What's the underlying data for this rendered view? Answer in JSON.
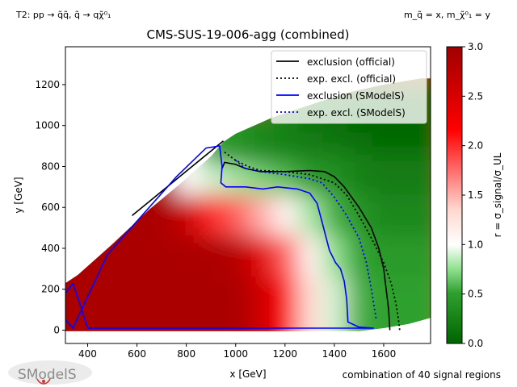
{
  "header": {
    "process": "T2: pp → q̃q̃, q̃ → qχ̃⁰₁",
    "mass_relation": "m_q̃ = x, m_χ̃⁰₁ = y",
    "footer_note": "combination of 40 signal regions",
    "logo_text": "SModelS"
  },
  "colors": {
    "official_line": "#000000",
    "smodels_line": "#0000ff",
    "colormap": [
      "#006400",
      "#ffffff",
      "#ff0000",
      "#a00000"
    ]
  },
  "chart_data": {
    "type": "heatmap",
    "title": "CMS-SUS-19-006-agg (combined)",
    "xlabel": "x [GeV]",
    "ylabel": "y [GeV]",
    "colorbar_label": "r = σ_signal/σ_UL",
    "xlim": [
      310,
      1790
    ],
    "ylim": [
      -65,
      1385
    ],
    "clim": [
      0,
      3
    ],
    "x_ticks": [
      400,
      600,
      800,
      1000,
      1200,
      1400,
      1600
    ],
    "y_ticks": [
      0,
      200,
      400,
      600,
      800,
      1000,
      1200
    ],
    "colorbar_ticks": [
      0.0,
      0.5,
      1.0,
      1.5,
      2.0,
      2.5,
      3.0
    ],
    "legend_position": "upper right",
    "grid": [
      [
        310,
        0,
        2.9
      ],
      [
        500,
        0,
        2.9
      ],
      [
        700,
        0,
        2.9
      ],
      [
        900,
        0,
        2.9
      ],
      [
        1100,
        0,
        2.9
      ],
      [
        1200,
        0,
        2.6
      ],
      [
        1300,
        0,
        2.1
      ],
      [
        1400,
        0,
        1.3
      ],
      [
        1500,
        0,
        0.9
      ],
      [
        1600,
        0,
        0.55
      ],
      [
        1700,
        0,
        0.5
      ],
      [
        310,
        200,
        2.9
      ],
      [
        500,
        200,
        2.9
      ],
      [
        700,
        200,
        2.9
      ],
      [
        900,
        200,
        2.9
      ],
      [
        1100,
        200,
        2.9
      ],
      [
        1200,
        200,
        2.6
      ],
      [
        1300,
        200,
        2.1
      ],
      [
        1400,
        200,
        1.3
      ],
      [
        1500,
        200,
        0.9
      ],
      [
        1600,
        200,
        0.55
      ],
      [
        1700,
        200,
        0.5
      ],
      [
        500,
        400,
        2.9
      ],
      [
        700,
        400,
        2.9
      ],
      [
        900,
        400,
        2.9
      ],
      [
        1100,
        400,
        2.8
      ],
      [
        1200,
        400,
        2.4
      ],
      [
        1300,
        400,
        1.8
      ],
      [
        1400,
        400,
        1.1
      ],
      [
        1500,
        400,
        0.75
      ],
      [
        1600,
        400,
        0.5
      ],
      [
        1700,
        400,
        0.45
      ],
      [
        700,
        600,
        2.9
      ],
      [
        900,
        600,
        2.6
      ],
      [
        1000,
        600,
        2.0
      ],
      [
        1100,
        600,
        1.8
      ],
      [
        1200,
        600,
        1.5
      ],
      [
        1300,
        600,
        1.1
      ],
      [
        1400,
        600,
        0.8
      ],
      [
        1500,
        600,
        0.55
      ],
      [
        1600,
        600,
        0.4
      ],
      [
        1700,
        600,
        0.3
      ],
      [
        900,
        800,
        1.0
      ],
      [
        1000,
        800,
        0.9
      ],
      [
        1100,
        800,
        0.8
      ],
      [
        1200,
        800,
        0.7
      ],
      [
        1300,
        800,
        0.6
      ],
      [
        1400,
        800,
        0.45
      ],
      [
        1500,
        800,
        0.35
      ],
      [
        1600,
        800,
        0.25
      ],
      [
        1700,
        800,
        0.2
      ],
      [
        1000,
        950,
        0.5
      ],
      [
        1100,
        950,
        0.4
      ],
      [
        1200,
        950,
        0.3
      ],
      [
        1300,
        1000,
        0.25
      ],
      [
        1400,
        1000,
        0.2
      ],
      [
        1500,
        1000,
        0.15
      ],
      [
        1600,
        1000,
        0.1
      ],
      [
        1700,
        1000,
        0.05
      ],
      [
        1400,
        1100,
        0.15
      ],
      [
        1500,
        1100,
        0.1
      ],
      [
        1600,
        1100,
        0.05
      ],
      [
        1700,
        1100,
        0.02
      ]
    ],
    "series": [
      {
        "name": "exclusion (official)",
        "style": "solid",
        "color": "#000000",
        "x": [
          945,
          955,
          1000,
          1040,
          1100,
          1200,
          1300,
          1360,
          1400,
          1440,
          1500,
          1550,
          1580,
          1600,
          1610,
          1620,
          1625
        ],
        "y": [
          790,
          820,
          810,
          790,
          775,
          775,
          780,
          775,
          750,
          700,
          600,
          500,
          400,
          300,
          200,
          100,
          0
        ]
      },
      {
        "name": "exclusion (official) segment",
        "style": "solid",
        "color": "#000000",
        "x": [
          580,
          950
        ],
        "y": [
          560,
          925
        ]
      },
      {
        "name": "exp. excl. (official)",
        "style": "dotted",
        "color": "#000000",
        "x": [
          955,
          1000,
          1050,
          1100,
          1200,
          1300,
          1400,
          1450,
          1500,
          1550,
          1600,
          1630,
          1650,
          1660,
          1665
        ],
        "y": [
          870,
          830,
          800,
          780,
          775,
          760,
          720,
          660,
          560,
          450,
          330,
          230,
          130,
          50,
          0
        ]
      },
      {
        "name": "exclusion (SModelS)",
        "style": "solid",
        "color": "#0000ff",
        "x": [
          340,
          310,
          310,
          340,
          480,
          620,
          760,
          880,
          935,
          945,
          940,
          960,
          1040,
          1110,
          1170,
          1250,
          1300,
          1330,
          1350,
          1380,
          1405,
          1425,
          1440,
          1450,
          1455,
          1500,
          1560,
          1500,
          1300,
          1000,
          700,
          400,
          340
        ],
        "y": [
          230,
          180,
          50,
          10,
          370,
          560,
          750,
          890,
          900,
          800,
          720,
          700,
          700,
          690,
          700,
          690,
          670,
          620,
          530,
          390,
          330,
          300,
          240,
          150,
          40,
          15,
          10,
          10,
          10,
          10,
          10,
          10,
          230
        ]
      },
      {
        "name": "exp. excl. (SModelS)",
        "style": "dotted",
        "color": "#0000ff",
        "x": [
          1000,
          1040,
          1100,
          1200,
          1300,
          1350,
          1400,
          1450,
          1500,
          1530,
          1550,
          1570
        ],
        "y": [
          830,
          790,
          775,
          760,
          740,
          720,
          650,
          560,
          450,
          330,
          200,
          50
        ]
      }
    ]
  }
}
